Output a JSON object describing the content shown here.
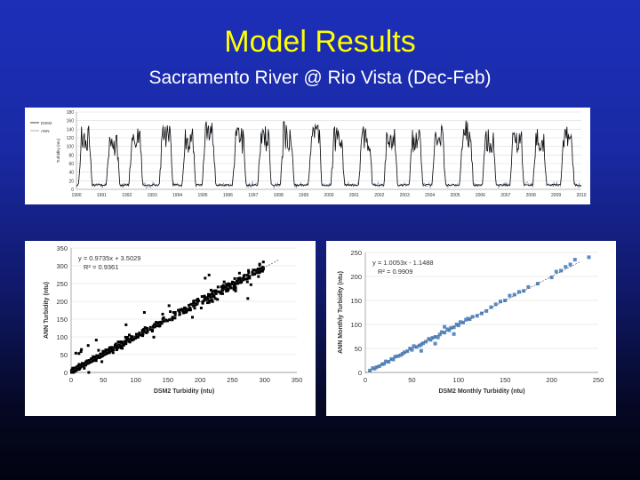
{
  "slide": {
    "title": "Model Results",
    "subtitle": "Sacramento River @ Rio Vista (Dec-Feb)"
  },
  "chart_data": [
    {
      "type": "line",
      "ylabel": "Turbidity (ntu)",
      "ylim": [
        0,
        180
      ],
      "yticks": [
        0,
        20,
        40,
        60,
        80,
        100,
        120,
        140,
        160,
        180
      ],
      "xticks": [
        "1990",
        "1991",
        "1992",
        "1993",
        "1994",
        "1995",
        "1996",
        "1997",
        "1998",
        "1999",
        "2000",
        "2001",
        "2002",
        "2003",
        "2004",
        "2005",
        "2006",
        "2007",
        "2008",
        "2009",
        "2010"
      ],
      "legend": [
        "DSM2",
        "ANN"
      ],
      "legend_position": "top-left",
      "colors": {
        "DSM2": "#111111",
        "ANN": "#8a9bb8"
      },
      "grid": true,
      "events": [
        {
          "year": 1990.2,
          "peak": 140
        },
        {
          "year": 1991.3,
          "peak": 120
        },
        {
          "year": 1992.2,
          "peak": 150
        },
        {
          "year": 1993.4,
          "peak": 145
        },
        {
          "year": 1994.3,
          "peak": 140
        },
        {
          "year": 1995.1,
          "peak": 150
        },
        {
          "year": 1996.3,
          "peak": 135
        },
        {
          "year": 1997.3,
          "peak": 140
        },
        {
          "year": 1998.2,
          "peak": 150
        },
        {
          "year": 1999.3,
          "peak": 145
        },
        {
          "year": 2000.2,
          "peak": 140
        },
        {
          "year": 2001.3,
          "peak": 140
        },
        {
          "year": 2002.3,
          "peak": 150
        },
        {
          "year": 2003.3,
          "peak": 135
        },
        {
          "year": 2004.2,
          "peak": 140
        },
        {
          "year": 2005.3,
          "peak": 155
        },
        {
          "year": 2006.2,
          "peak": 135
        },
        {
          "year": 2007.3,
          "peak": 140
        },
        {
          "year": 2008.2,
          "peak": 135
        },
        {
          "year": 2009.3,
          "peak": 140
        }
      ],
      "baseline": 8
    },
    {
      "type": "scatter",
      "xlabel": "DSM2 Turbidity (ntu)",
      "ylabel": "ANN Turbidity (ntu)",
      "xlim": [
        0,
        350
      ],
      "ylim": [
        0,
        350
      ],
      "xticks": [
        0,
        50,
        100,
        150,
        200,
        250,
        300,
        350
      ],
      "yticks": [
        0,
        50,
        100,
        150,
        200,
        250,
        300,
        350
      ],
      "equation": "y = 0.9735x + 3.5029",
      "r2": "R² = 0.9361",
      "fit": {
        "slope": 0.9735,
        "intercept": 3.5029
      },
      "marker_color": "#000000",
      "grid": true,
      "clusters": [
        {
          "x_range": [
            0,
            60
          ],
          "count": 180
        },
        {
          "x_range": [
            60,
            200
          ],
          "count": 160
        },
        {
          "x_range": [
            200,
            300
          ],
          "count": 140
        }
      ]
    },
    {
      "type": "scatter",
      "xlabel": "DSM2 Monthly Turbidity (ntu)",
      "ylabel": "ANN Monthly Turbidity (ntu)",
      "xlim": [
        0,
        250
      ],
      "ylim": [
        0,
        250
      ],
      "xticks": [
        0,
        50,
        100,
        150,
        200,
        250
      ],
      "yticks": [
        0,
        50,
        100,
        150,
        200,
        250
      ],
      "equation": "y = 1.0053x - 1.1488",
      "r2": "R² = 0.9909",
      "fit": {
        "slope": 1.0053,
        "intercept": -1.1488
      },
      "marker_color": "#5b8bc4",
      "grid": true,
      "points": [
        [
          5,
          4
        ],
        [
          8,
          9
        ],
        [
          10,
          8
        ],
        [
          12,
          11
        ],
        [
          15,
          13
        ],
        [
          18,
          17
        ],
        [
          20,
          18
        ],
        [
          22,
          23
        ],
        [
          25,
          22
        ],
        [
          28,
          28
        ],
        [
          30,
          27
        ],
        [
          32,
          33
        ],
        [
          35,
          34
        ],
        [
          38,
          36
        ],
        [
          40,
          39
        ],
        [
          42,
          42
        ],
        [
          45,
          44
        ],
        [
          48,
          50
        ],
        [
          50,
          47
        ],
        [
          52,
          55
        ],
        [
          55,
          53
        ],
        [
          58,
          56
        ],
        [
          60,
          58
        ],
        [
          62,
          61
        ],
        [
          65,
          64
        ],
        [
          68,
          70
        ],
        [
          70,
          68
        ],
        [
          72,
          72
        ],
        [
          75,
          74
        ],
        [
          78,
          73
        ],
        [
          80,
          79
        ],
        [
          82,
          84
        ],
        [
          85,
          83
        ],
        [
          88,
          90
        ],
        [
          90,
          88
        ],
        [
          92,
          93
        ],
        [
          95,
          94
        ],
        [
          98,
          100
        ],
        [
          100,
          98
        ],
        [
          102,
          105
        ],
        [
          105,
          104
        ],
        [
          108,
          110
        ],
        [
          110,
          112
        ],
        [
          112,
          111
        ],
        [
          115,
          116
        ],
        [
          120,
          118
        ],
        [
          125,
          123
        ],
        [
          130,
          128
        ],
        [
          135,
          136
        ],
        [
          140,
          142
        ],
        [
          145,
          148
        ],
        [
          150,
          150
        ],
        [
          155,
          160
        ],
        [
          160,
          162
        ],
        [
          165,
          168
        ],
        [
          170,
          170
        ],
        [
          175,
          178
        ],
        [
          185,
          185
        ],
        [
          200,
          198
        ],
        [
          205,
          210
        ],
        [
          210,
          212
        ],
        [
          215,
          220
        ],
        [
          220,
          225
        ],
        [
          225,
          235
        ],
        [
          240,
          240
        ],
        [
          75,
          60
        ],
        [
          85,
          95
        ],
        [
          95,
          80
        ],
        [
          60,
          45
        ]
      ]
    }
  ]
}
